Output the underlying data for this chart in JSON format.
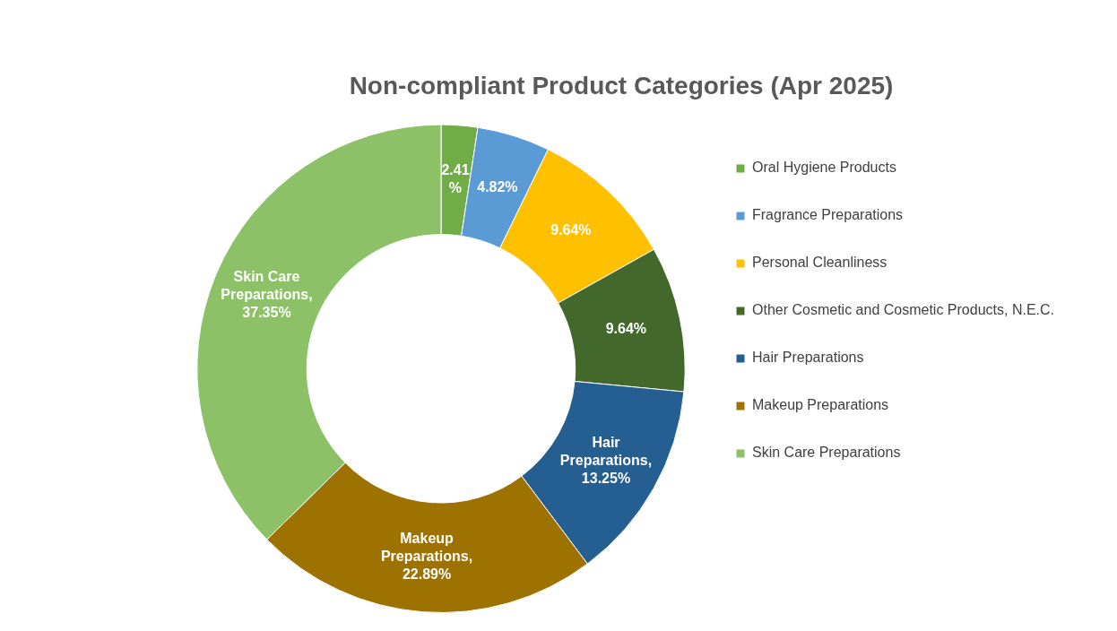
{
  "chart_data": {
    "type": "donut",
    "title": "Non-compliant Product Categories (Apr 2025)",
    "categories": [
      "Oral Hygiene Products",
      "Fragrance Preparations",
      "Personal Cleanliness",
      "Other Cosmetic and Cosmetic Products, N.E.C.",
      "Hair Preparations",
      "Makeup Preparations",
      "Skin Care Preparations"
    ],
    "values": [
      2.41,
      4.82,
      9.64,
      9.64,
      13.25,
      22.89,
      37.35
    ],
    "colors": [
      "#70ad47",
      "#5b9bd5",
      "#ffc000",
      "#43682b",
      "#255e91",
      "#9e7200",
      "#8cc168"
    ],
    "value_labels": [
      "2.41%",
      "4.82%",
      "9.64%",
      "9.64%",
      "Hair Preparations, 13.25%",
      "Makeup Preparations, 22.89%",
      "Skin Care Preparations, 37.35%"
    ],
    "legend": "right"
  }
}
